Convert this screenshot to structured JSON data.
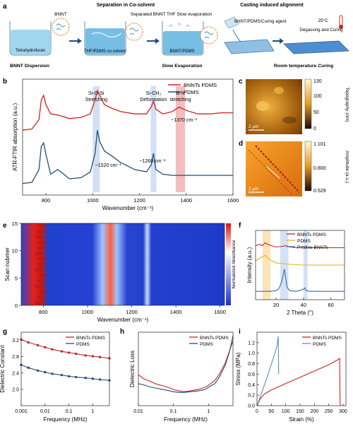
{
  "panel_a": {
    "letter": "a",
    "step_titles": [
      "Separation in Co-solvent",
      "Casting induced alignment"
    ],
    "step_labels": [
      "BNNT Dispersion",
      "Slow Evaporation",
      "Room temperature Curing"
    ],
    "annotations": {
      "bnnt": "BNNT",
      "thf": "Tetrahydrofuran",
      "separated": "Separated BNNT",
      "cosolvent": "THF/PDMS co-solvent",
      "thf_evap": "THF Slow evaporation",
      "bnnt_pdms": "BNNT/PDMS",
      "curing_agent": "BNNT/PDMS/Curing agent",
      "temp": "25°C",
      "degas": "Degassing and Curing"
    },
    "colors": {
      "liquid": "#8fd0ec",
      "liquid_dark": "#3b93c7",
      "film": "#6aa7da",
      "accent": "#e8791e"
    }
  },
  "chart_data": [
    {
      "panel": "b",
      "type": "line",
      "xlabel": "Wavenumber (cm⁻¹)",
      "ylabel": "ATR-FTIR absorption (a.u.)",
      "xlim": [
        700,
        1600
      ],
      "xticks": [
        800,
        1000,
        1200,
        1400,
        1600
      ],
      "series": [
        {
          "name": "BNNTs PDMS",
          "color": "#d42020",
          "x": [
            700,
            740,
            770,
            780,
            790,
            800,
            820,
            850,
            870,
            900,
            950,
            990,
            1010,
            1020,
            1030,
            1050,
            1080,
            1120,
            1180,
            1230,
            1250,
            1260,
            1270,
            1300,
            1340,
            1370,
            1400,
            1450,
            1500,
            1550,
            1600
          ],
          "y": [
            0.56,
            0.57,
            0.65,
            0.82,
            0.86,
            0.78,
            0.7,
            0.69,
            0.68,
            0.66,
            0.67,
            0.7,
            0.82,
            0.9,
            0.86,
            0.78,
            0.75,
            0.72,
            0.7,
            0.7,
            0.76,
            0.81,
            0.74,
            0.7,
            0.72,
            0.76,
            0.73,
            0.7,
            0.7,
            0.71,
            0.71
          ]
        },
        {
          "name": "PDMS",
          "color": "#1f4e79",
          "x": [
            700,
            740,
            770,
            780,
            790,
            800,
            820,
            850,
            870,
            900,
            950,
            990,
            1010,
            1020,
            1030,
            1050,
            1080,
            1120,
            1180,
            1230,
            1250,
            1260,
            1270,
            1300,
            1340,
            1370,
            1400,
            1450,
            1500,
            1550,
            1600
          ],
          "y": [
            0.1,
            0.11,
            0.22,
            0.42,
            0.45,
            0.35,
            0.18,
            0.22,
            0.19,
            0.14,
            0.15,
            0.2,
            0.36,
            0.56,
            0.46,
            0.38,
            0.34,
            0.28,
            0.22,
            0.2,
            0.26,
            0.36,
            0.22,
            0.18,
            0.17,
            0.17,
            0.17,
            0.17,
            0.17,
            0.17,
            0.17
          ]
        }
      ],
      "bands": [
        {
          "label": "Si-O-Si\nStretching",
          "from": 1000,
          "to": 1030,
          "color": "#c9dbf2",
          "note": "~1020 cm⁻¹"
        },
        {
          "label": "Si-CH₃\nDeformation",
          "from": 1248,
          "to": 1272,
          "color": "#c9dbf2",
          "note": "~1260 cm⁻¹"
        },
        {
          "label": "B-N\nstretching",
          "from": 1355,
          "to": 1395,
          "color": "#f0b3b3",
          "note": "~1370 cm⁻¹"
        }
      ]
    },
    {
      "panel": "e",
      "type": "heatmap",
      "xlabel": "Wavenumber (cm⁻¹)",
      "ylabel": "Scan nubmer",
      "xlim": [
        700,
        1620
      ],
      "ylim": [
        0,
        15
      ],
      "xticks": [
        800,
        1000,
        1200,
        1400,
        1600
      ],
      "yticks": [
        0,
        5,
        10,
        15
      ],
      "colorbar_label": "Normalized Absorbance",
      "colors": {
        "low": "#1f3cc9",
        "mid": "#8fb8ff",
        "high": "#e8201e"
      }
    },
    {
      "panel": "f",
      "type": "line",
      "xlabel": "2 Theta (°)",
      "ylabel": "Intensity (a.u.)",
      "xlim": [
        5,
        70
      ],
      "xticks": [
        20,
        40,
        60
      ],
      "series": [
        {
          "name": "BNNTs PDMS",
          "color": "#c0262a",
          "x": [
            5,
            8,
            10,
            12,
            15,
            20,
            25,
            27,
            30,
            35,
            40,
            45,
            50,
            60,
            70
          ],
          "y": [
            0.78,
            0.8,
            0.78,
            0.82,
            0.79,
            0.76,
            0.77,
            0.78,
            0.76,
            0.75,
            0.76,
            0.75,
            0.75,
            0.75,
            0.75
          ]
        },
        {
          "name": "PDMS",
          "color": "#e3b21e",
          "x": [
            5,
            8,
            10,
            12,
            15,
            20,
            25,
            30,
            40,
            50,
            60,
            70
          ],
          "y": [
            0.56,
            0.6,
            0.62,
            0.64,
            0.58,
            0.53,
            0.52,
            0.51,
            0.5,
            0.5,
            0.5,
            0.5
          ]
        },
        {
          "name": "Pristine BNNTs",
          "color": "#3e6aa5",
          "x": [
            5,
            10,
            15,
            20,
            22,
            24,
            25,
            26,
            27,
            28,
            30,
            35,
            40,
            41,
            42,
            45,
            50,
            60,
            70
          ],
          "y": [
            0.12,
            0.12,
            0.12,
            0.13,
            0.16,
            0.25,
            0.34,
            0.44,
            0.32,
            0.18,
            0.13,
            0.12,
            0.15,
            0.17,
            0.13,
            0.12,
            0.12,
            0.12,
            0.12
          ]
        }
      ],
      "bands": [
        {
          "from": 10,
          "to": 16,
          "color": "#f7dfa6"
        },
        {
          "from": 23,
          "to": 29,
          "color": "#c9dbf2"
        },
        {
          "from": 40,
          "to": 43,
          "color": "#c9dbf2"
        }
      ]
    },
    {
      "panel": "g",
      "type": "line",
      "xlabel": "Frequency (MHz)",
      "ylabel": "Dielectric Constant",
      "xscale": "log",
      "xlim": [
        0.001,
        5
      ],
      "ylim": [
        1.6,
        3.4
      ],
      "xticks": [
        "0.001",
        "0.01",
        "0.1",
        "1"
      ],
      "yticks": [
        2.0,
        2.4,
        2.8,
        3.2
      ],
      "series": [
        {
          "name": "BNNTs PDMS",
          "color": "#c0262a",
          "x": [
            0.001,
            0.002,
            0.005,
            0.01,
            0.02,
            0.05,
            0.1,
            0.2,
            0.5,
            1,
            2,
            5
          ],
          "y": [
            3.22,
            3.15,
            3.08,
            3.03,
            2.98,
            2.93,
            2.9,
            2.87,
            2.83,
            2.81,
            2.79,
            2.76
          ]
        },
        {
          "name": "PDMS",
          "color": "#2a4c7a",
          "x": [
            0.001,
            0.002,
            0.005,
            0.01,
            0.02,
            0.05,
            0.1,
            0.2,
            0.5,
            1,
            2,
            5
          ],
          "y": [
            2.6,
            2.53,
            2.46,
            2.42,
            2.38,
            2.35,
            2.32,
            2.3,
            2.28,
            2.26,
            2.24,
            2.22
          ]
        }
      ]
    },
    {
      "panel": "h",
      "type": "line",
      "xlabel": "Frequency (MHz)",
      "ylabel": "Dielectric Loss",
      "xscale": "log",
      "xlim": [
        0.01,
        5
      ],
      "ylim": [
        0,
        1
      ],
      "xticks": [
        "0.01",
        "0.1",
        "1"
      ],
      "series": [
        {
          "name": "BNNTs PDMS",
          "color": "#d42020",
          "x": [
            0.01,
            0.015,
            0.02,
            0.03,
            0.05,
            0.08,
            0.1,
            0.15,
            0.2,
            0.3,
            0.5,
            0.8,
            1,
            1.5,
            2,
            3,
            4,
            5
          ],
          "y": [
            0.42,
            0.36,
            0.34,
            0.3,
            0.27,
            0.24,
            0.22,
            0.2,
            0.19,
            0.2,
            0.22,
            0.25,
            0.28,
            0.34,
            0.42,
            0.58,
            0.75,
            0.88
          ]
        },
        {
          "name": "PDMS",
          "color": "#1f4e79",
          "x": [
            0.01,
            0.015,
            0.02,
            0.03,
            0.05,
            0.08,
            0.1,
            0.15,
            0.2,
            0.3,
            0.5,
            0.8,
            1,
            1.5,
            2,
            3,
            4,
            5
          ],
          "y": [
            0.3,
            0.28,
            0.26,
            0.24,
            0.22,
            0.2,
            0.19,
            0.18,
            0.18,
            0.19,
            0.2,
            0.22,
            0.25,
            0.3,
            0.38,
            0.55,
            0.74,
            0.95
          ]
        }
      ]
    },
    {
      "panel": "i",
      "type": "line",
      "xlabel": "Strain (%)",
      "ylabel": "Stress (MPa)",
      "xlim": [
        0,
        310
      ],
      "ylim": [
        0,
        1.4
      ],
      "xticks": [
        0,
        50,
        100,
        150,
        200,
        250,
        300
      ],
      "yticks": [
        0.0,
        0.2,
        0.4,
        0.6,
        0.8,
        1.0,
        1.2
      ],
      "series": [
        {
          "name": "BNNTs PDMS",
          "color": "#d42020",
          "x": [
            0,
            10,
            25,
            50,
            75,
            100,
            150,
            200,
            250,
            280,
            288,
            289,
            290
          ],
          "y": [
            0,
            0.12,
            0.22,
            0.3,
            0.36,
            0.42,
            0.54,
            0.66,
            0.78,
            0.87,
            0.9,
            0.3,
            0.0
          ]
        },
        {
          "name": "PDMS",
          "color": "#5b8fc0",
          "x": [
            0,
            10,
            20,
            30,
            40,
            50,
            60,
            70,
            74,
            75,
            75.5
          ],
          "y": [
            0,
            0.15,
            0.3,
            0.46,
            0.62,
            0.79,
            0.96,
            1.15,
            1.32,
            0.9,
            0.6
          ]
        }
      ]
    }
  ],
  "panels_cd": {
    "c": {
      "scale": "2 μm",
      "colorbar_label": "Topography (nm)",
      "ticks": [
        "130",
        "100",
        "50",
        "0"
      ]
    },
    "d": {
      "scale": "2 μm",
      "colorbar_label": "Amplitude (a.u.)",
      "ticks": [
        "1.101",
        "0.800",
        "0.529"
      ]
    }
  },
  "panel_letters": {
    "b": "b",
    "c": "c",
    "d": "d",
    "e": "e",
    "f": "f",
    "g": "g",
    "h": "h",
    "i": "i"
  }
}
